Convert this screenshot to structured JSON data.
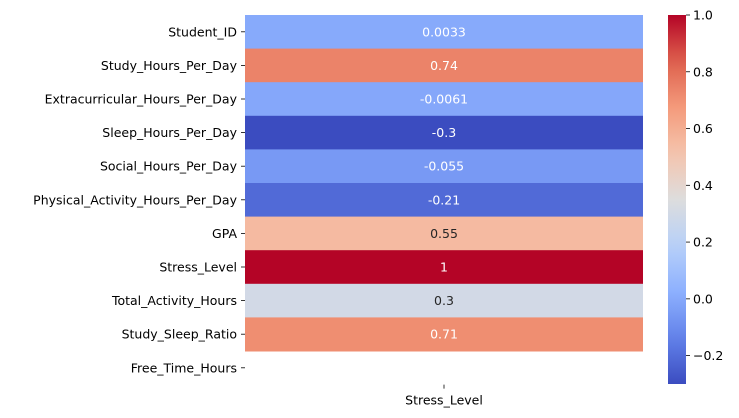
{
  "chart_data": {
    "type": "heatmap",
    "title": "",
    "xlabel": "",
    "ylabel": "",
    "columns": [
      "Stress_Level"
    ],
    "rows": [
      "Student_ID",
      "Study_Hours_Per_Day",
      "Extracurricular_Hours_Per_Day",
      "Sleep_Hours_Per_Day",
      "Social_Hours_Per_Day",
      "Physical_Activity_Hours_Per_Day",
      "GPA",
      "Stress_Level",
      "Total_Activity_Hours",
      "Study_Sleep_Ratio",
      "Free_Time_Hours"
    ],
    "values": [
      0.0033,
      0.74,
      -0.0061,
      -0.3,
      -0.055,
      -0.21,
      0.55,
      1,
      0.3,
      0.71,
      null
    ],
    "value_labels": [
      "0.0033",
      "0.74",
      "-0.0061",
      "-0.3",
      "-0.055",
      "-0.21",
      "0.55",
      "1",
      "0.3",
      "0.71",
      ""
    ],
    "colormap": "coolwarm",
    "colorbar": {
      "vmin": -0.3,
      "vmax": 1.0,
      "ticks": [
        -0.2,
        0.0,
        0.2,
        0.4,
        0.6,
        0.8,
        1.0
      ],
      "tick_labels": [
        "−0.2",
        "0.0",
        "0.2",
        "0.4",
        "0.6",
        "0.8",
        "1.0"
      ]
    }
  }
}
